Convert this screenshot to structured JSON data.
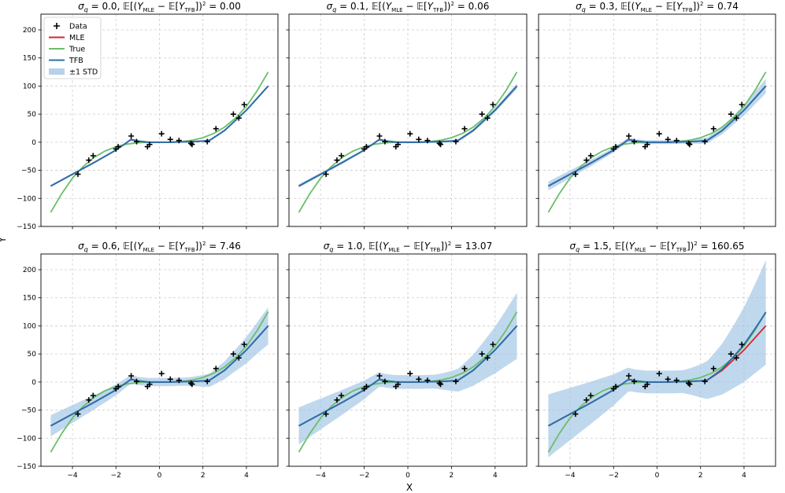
{
  "figure": {
    "xlabel": "X",
    "ylabel": "Y",
    "x_ticks": [
      -4,
      -2,
      0,
      2,
      4
    ],
    "y_ticks": [
      -150,
      -100,
      -50,
      0,
      50,
      100,
      150,
      200
    ],
    "xlim": [
      -5.45,
      5.45
    ],
    "ylim": [
      -150,
      228
    ],
    "legend": {
      "position": "top-left",
      "entries": [
        "Data",
        "MLE",
        "True",
        "TFB",
        "±1 STD"
      ]
    },
    "colors": {
      "data": "#000000",
      "mle": "#d62728",
      "true": "#6abf69",
      "tfb": "#2b70ad",
      "std_band": "#9ec3e3",
      "grid": "#cccccc"
    }
  },
  "chart_data": [
    {
      "type": "line",
      "sigma": "0.0",
      "mse": "0.00",
      "band_width": [
        0.5,
        0.5
      ]
    },
    {
      "type": "line",
      "sigma": "0.1",
      "mse": "0.06",
      "band_width": [
        2,
        4
      ]
    },
    {
      "type": "line",
      "sigma": "0.3",
      "mse": "0.74",
      "band_width": [
        7,
        12
      ]
    },
    {
      "type": "line",
      "sigma": "0.6",
      "mse": "7.46",
      "band_width": [
        18,
        32
      ]
    },
    {
      "type": "line",
      "sigma": "1.0",
      "mse": "13.07",
      "band_width": [
        32,
        58
      ]
    },
    {
      "type": "line",
      "sigma": "1.5",
      "mse": "160.65",
      "band_width": [
        55,
        92
      ],
      "tfb_scale": 1.24
    }
  ],
  "series": {
    "data_points": [
      [
        -3.75,
        -57
      ],
      [
        -3.25,
        -32
      ],
      [
        -3.05,
        -24
      ],
      [
        -2.0,
        -12
      ],
      [
        -1.9,
        -8
      ],
      [
        -1.3,
        11
      ],
      [
        -1.05,
        1
      ],
      [
        -0.55,
        -8
      ],
      [
        -0.45,
        -4
      ],
      [
        0.1,
        15
      ],
      [
        0.5,
        5
      ],
      [
        0.9,
        3
      ],
      [
        1.45,
        -2
      ],
      [
        1.5,
        -4
      ],
      [
        2.2,
        1
      ],
      [
        2.6,
        24
      ],
      [
        3.4,
        50
      ],
      [
        3.65,
        43
      ],
      [
        3.9,
        67
      ]
    ],
    "true_curve": [
      [
        -5,
        -125
      ],
      [
        -4.5,
        -92
      ],
      [
        -4,
        -64
      ],
      [
        -3.5,
        -43
      ],
      [
        -3,
        -27
      ],
      [
        -2.5,
        -15.6
      ],
      [
        -2,
        -8
      ],
      [
        -1.5,
        -3.4
      ],
      [
        -1,
        -1
      ],
      [
        -0.5,
        -0.1
      ],
      [
        0,
        0
      ],
      [
        0.5,
        0.1
      ],
      [
        1,
        1
      ],
      [
        1.5,
        3.4
      ],
      [
        2,
        8
      ],
      [
        2.5,
        15.6
      ],
      [
        3,
        27
      ],
      [
        3.5,
        43
      ],
      [
        4,
        64
      ],
      [
        4.5,
        92
      ],
      [
        5,
        125
      ]
    ],
    "mle_curve": [
      [
        -5,
        -78
      ],
      [
        -4,
        -57
      ],
      [
        -3,
        -36
      ],
      [
        -2,
        -14
      ],
      [
        -1.3,
        5
      ],
      [
        -1.0,
        2
      ],
      [
        -0.5,
        0
      ],
      [
        0,
        0
      ],
      [
        0.5,
        0
      ],
      [
        1,
        0.5
      ],
      [
        1.5,
        1
      ],
      [
        2,
        2
      ],
      [
        2.3,
        3
      ],
      [
        3,
        21
      ],
      [
        4,
        57
      ],
      [
        5,
        100
      ]
    ],
    "tfb_curve": [
      [
        -5,
        -78
      ],
      [
        -4,
        -57
      ],
      [
        -3,
        -36
      ],
      [
        -2,
        -14
      ],
      [
        -1.3,
        5
      ],
      [
        -1.0,
        2
      ],
      [
        -0.5,
        0
      ],
      [
        0,
        0
      ],
      [
        0.5,
        0
      ],
      [
        1,
        0.5
      ],
      [
        1.5,
        1
      ],
      [
        2,
        2
      ],
      [
        2.3,
        3
      ],
      [
        3,
        21
      ],
      [
        4,
        57
      ],
      [
        5,
        100
      ]
    ]
  }
}
